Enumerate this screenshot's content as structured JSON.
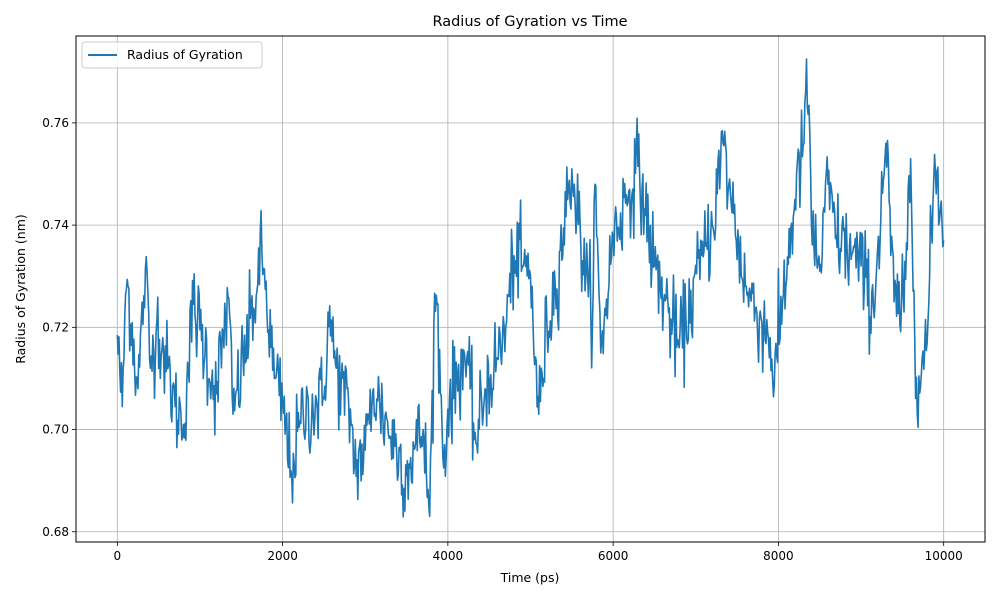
{
  "chart_data": {
    "type": "line",
    "title": "Radius of Gyration vs Time",
    "xlabel": "Time (ps)",
    "ylabel": "Radius of Gyration (nm)",
    "xlim": [
      -500,
      10500
    ],
    "ylim": [
      0.678,
      0.777
    ],
    "xticks": [
      0,
      2000,
      4000,
      6000,
      8000,
      10000
    ],
    "xtick_labels": [
      "0",
      "2000",
      "4000",
      "6000",
      "8000",
      "10000"
    ],
    "yticks": [
      0.68,
      0.7,
      0.72,
      0.74,
      0.76
    ],
    "ytick_labels": [
      "0.68",
      "0.70",
      "0.72",
      "0.74",
      "0.76"
    ],
    "grid": true,
    "legend": "top-left",
    "series": [
      {
        "name": "Radius of Gyration",
        "color": "#1f77b4",
        "x_range": [
          0,
          10000
        ],
        "num_points": 1001,
        "shape_note_anchor": "values are reproduced by the plotting script from these keypoints",
        "keypoints": [
          [
            0,
            0.7185
          ],
          [
            30,
            0.7115
          ],
          [
            60,
            0.7045
          ],
          [
            100,
            0.7265
          ],
          [
            130,
            0.728
          ],
          [
            250,
            0.708
          ],
          [
            340,
            0.7315
          ],
          [
            400,
            0.712
          ],
          [
            480,
            0.7215
          ],
          [
            700,
            0.7045
          ],
          [
            800,
            0.701
          ],
          [
            920,
            0.7245
          ],
          [
            1200,
            0.707
          ],
          [
            1340,
            0.726
          ],
          [
            1400,
            0.703
          ],
          [
            1700,
            0.7285
          ],
          [
            1750,
            0.7345
          ],
          [
            1900,
            0.71
          ],
          [
            2000,
            0.705
          ],
          [
            2100,
            0.692
          ],
          [
            2250,
            0.703
          ],
          [
            2500,
            0.706
          ],
          [
            2550,
            0.723
          ],
          [
            2650,
            0.712
          ],
          [
            2840,
            0.701
          ],
          [
            2870,
            0.693
          ],
          [
            3000,
            0.696
          ],
          [
            3100,
            0.708
          ],
          [
            3500,
            0.691
          ],
          [
            3550,
            0.6945
          ],
          [
            3700,
            0.7
          ],
          [
            3780,
            0.683
          ],
          [
            3830,
            0.7205
          ],
          [
            3870,
            0.7245
          ],
          [
            3950,
            0.6925
          ],
          [
            4000,
            0.704
          ],
          [
            4200,
            0.715
          ],
          [
            4350,
            0.697
          ],
          [
            4450,
            0.708
          ],
          [
            4600,
            0.714
          ],
          [
            4700,
            0.72
          ],
          [
            4800,
            0.734
          ],
          [
            5000,
            0.73
          ],
          [
            5100,
            0.703
          ],
          [
            5200,
            0.72
          ],
          [
            5300,
            0.728
          ],
          [
            5450,
            0.745
          ],
          [
            5500,
            0.751
          ],
          [
            5700,
            0.726
          ],
          [
            5760,
            0.728
          ],
          [
            5780,
            0.748
          ],
          [
            5850,
            0.715
          ],
          [
            6000,
            0.738
          ],
          [
            6200,
            0.747
          ],
          [
            6300,
            0.7515
          ],
          [
            6500,
            0.732
          ],
          [
            6800,
            0.716
          ],
          [
            7100,
            0.735
          ],
          [
            7200,
            0.74
          ],
          [
            7330,
            0.756
          ],
          [
            7400,
            0.748
          ],
          [
            7600,
            0.728
          ],
          [
            7800,
            0.721
          ],
          [
            7900,
            0.718
          ],
          [
            7950,
            0.7085
          ],
          [
            8050,
            0.725
          ],
          [
            8200,
            0.745
          ],
          [
            8310,
            0.756
          ],
          [
            8340,
            0.7725
          ],
          [
            8400,
            0.74
          ],
          [
            8500,
            0.731
          ],
          [
            8600,
            0.748
          ],
          [
            8700,
            0.738
          ],
          [
            9000,
            0.732
          ],
          [
            9150,
            0.724
          ],
          [
            9300,
            0.756
          ],
          [
            9400,
            0.725
          ],
          [
            9520,
            0.723
          ],
          [
            9600,
            0.753
          ],
          [
            9650,
            0.7175
          ],
          [
            9700,
            0.7105
          ],
          [
            9800,
            0.717
          ],
          [
            9880,
            0.749
          ],
          [
            9920,
            0.7505
          ],
          [
            10000,
            0.737
          ]
        ]
      }
    ]
  }
}
